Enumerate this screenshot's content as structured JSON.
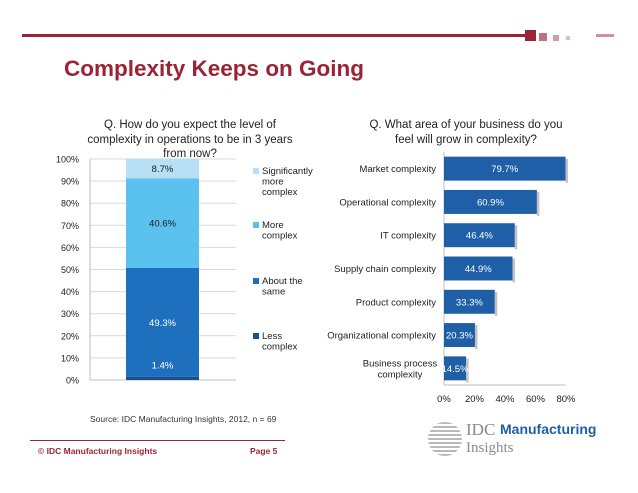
{
  "slide": {
    "title": "Complexity Keeps on Going",
    "source": "Source: IDC Manufacturing Insights, 2012, n = 69",
    "footer_left": "© IDC Manufacturing Insights",
    "footer_right": "Page 5",
    "logo": {
      "idc": "IDC",
      "manufacturing": "Manufacturing",
      "insights": "Insights"
    }
  },
  "colors": {
    "accent": "#9b2335",
    "significantly_more": "#b7dff5",
    "more": "#5bc2f0",
    "about_same": "#1f6fbf",
    "less": "#1b4f8c",
    "hbar": "#1e5fa8",
    "grid": "#d9d9d9"
  },
  "chart_data": [
    {
      "type": "bar",
      "stacked": true,
      "title": "Q. How do you expect the level of complexity in operations to be in 3 years from now?",
      "title_lines": [
        "Q. How do you expect the level of",
        "complexity in operations to be in 3 years",
        "from now?"
      ],
      "ylim": [
        0,
        100
      ],
      "yticks": [
        "0%",
        "10%",
        "20%",
        "30%",
        "40%",
        "50%",
        "60%",
        "70%",
        "80%",
        "90%",
        "100%"
      ],
      "series": [
        {
          "name": "Less complex",
          "legend_lines": [
            "Less",
            "complex"
          ],
          "value": 1.4,
          "label": "1.4%",
          "color": "#1b4f8c"
        },
        {
          "name": "About the same",
          "legend_lines": [
            "About the",
            "same"
          ],
          "value": 49.3,
          "label": "49.3%",
          "color": "#1f6fbf"
        },
        {
          "name": "More complex",
          "legend_lines": [
            "More",
            "complex"
          ],
          "value": 40.6,
          "label": "40.6%",
          "color": "#5bc2f0"
        },
        {
          "name": "Significantly more complex",
          "legend_lines": [
            "Significantly",
            "more",
            "complex"
          ],
          "value": 8.7,
          "label": "8.7%",
          "color": "#b7dff5"
        }
      ]
    },
    {
      "type": "bar",
      "orientation": "horizontal",
      "title": "Q. What area of your business do you feel will grow in complexity?",
      "title_lines": [
        "Q. What area of your business do you",
        "feel will grow in complexity?"
      ],
      "xlim": [
        0,
        80
      ],
      "xticks": [
        "0%",
        "20%",
        "40%",
        "60%",
        "80%"
      ],
      "categories": [
        {
          "name": "Market complexity",
          "lines": [
            "Market complexity"
          ],
          "value": 79.7,
          "label": "79.7%"
        },
        {
          "name": "Operational complexity",
          "lines": [
            "Operational complexity"
          ],
          "value": 60.9,
          "label": "60.9%"
        },
        {
          "name": "IT complexity",
          "lines": [
            "IT complexity"
          ],
          "value": 46.4,
          "label": "46.4%"
        },
        {
          "name": "Supply chain complexity",
          "lines": [
            "Supply chain complexity"
          ],
          "value": 44.9,
          "label": "44.9%"
        },
        {
          "name": "Product complexity",
          "lines": [
            "Product complexity"
          ],
          "value": 33.3,
          "label": "33.3%"
        },
        {
          "name": "Organizational complexity",
          "lines": [
            "Organizational complexity"
          ],
          "value": 20.3,
          "label": "20.3%"
        },
        {
          "name": "Business process complexity",
          "lines": [
            "Business process",
            "complexity"
          ],
          "value": 14.5,
          "label": "14.5%"
        }
      ]
    }
  ]
}
